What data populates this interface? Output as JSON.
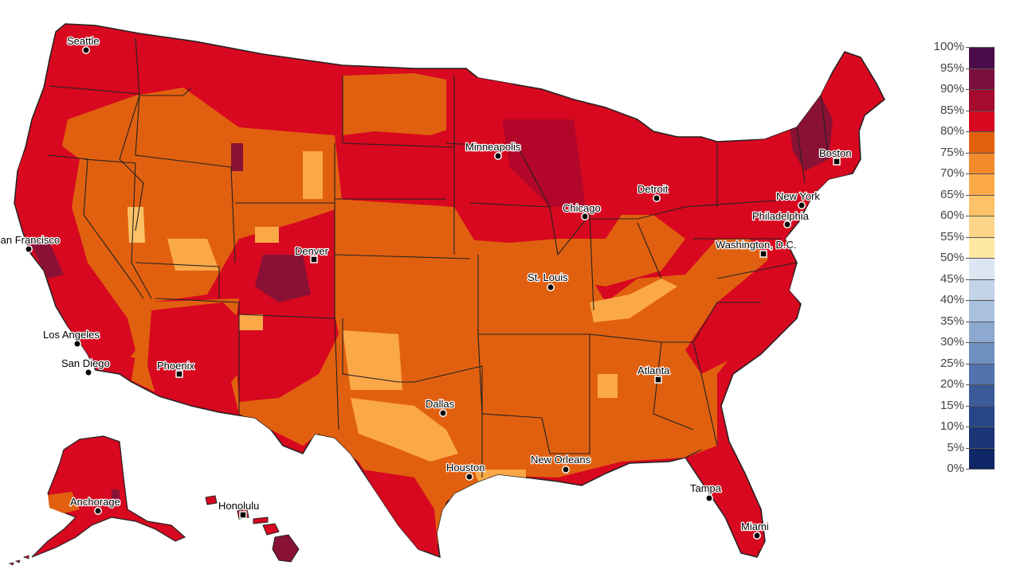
{
  "map": {
    "fill_colors": {
      "ocean": "#ffffff",
      "base_80_85": "#d7081f",
      "high_85_90": "#b2072a",
      "high_90_95": "#8a1136",
      "mid_75_80": "#e1600f",
      "mid_70_75": "#f38a2b",
      "low_65_70": "#fba848",
      "low_60_65": "#fdc168",
      "state_border": "#222222",
      "county_border": "#7a1e18"
    },
    "cities": [
      {
        "id": "seattle",
        "name": "Seattle",
        "marker": "circle"
      },
      {
        "id": "minneapolis",
        "name": "Minneapolis",
        "marker": "circle"
      },
      {
        "id": "boston",
        "name": "Boston",
        "marker": "square"
      },
      {
        "id": "detroit",
        "name": "Detroit",
        "marker": "circle"
      },
      {
        "id": "chicago",
        "name": "Chicago",
        "marker": "circle"
      },
      {
        "id": "new-york",
        "name": "New York",
        "marker": "circle"
      },
      {
        "id": "philadelphia",
        "name": "Philadelphia",
        "marker": "circle"
      },
      {
        "id": "san-francisco",
        "name": "San Francisco",
        "marker": "circle"
      },
      {
        "id": "denver",
        "name": "Denver",
        "marker": "square"
      },
      {
        "id": "washington-dc",
        "name": "Washington, D.C.",
        "marker": "square"
      },
      {
        "id": "st-louis",
        "name": "St. Louis",
        "marker": "circle"
      },
      {
        "id": "los-angeles",
        "name": "Los Angeles",
        "marker": "circle"
      },
      {
        "id": "san-diego",
        "name": "San Diego",
        "marker": "circle"
      },
      {
        "id": "phoenix",
        "name": "Phoenix",
        "marker": "square"
      },
      {
        "id": "atlanta",
        "name": "Atlanta",
        "marker": "square"
      },
      {
        "id": "dallas",
        "name": "Dallas",
        "marker": "circle"
      },
      {
        "id": "houston",
        "name": "Houston",
        "marker": "circle"
      },
      {
        "id": "new-orleans",
        "name": "New Orleans",
        "marker": "circle"
      },
      {
        "id": "tampa",
        "name": "Tampa",
        "marker": "circle"
      },
      {
        "id": "miami",
        "name": "Miami",
        "marker": "circle"
      },
      {
        "id": "anchorage",
        "name": "Anchorage",
        "marker": "circle"
      },
      {
        "id": "honolulu",
        "name": "Honolulu",
        "marker": "square"
      }
    ]
  },
  "legend": {
    "ticks": [
      "100%",
      "95%",
      "90%",
      "85%",
      "80%",
      "75%",
      "70%",
      "65%",
      "60%",
      "55%",
      "50%",
      "45%",
      "40%",
      "35%",
      "30%",
      "25%",
      "20%",
      "15%",
      "10%",
      "5%",
      "0%"
    ],
    "swatch_colors": [
      "#4a0b48",
      "#7a0e3c",
      "#a40b2e",
      "#d7081f",
      "#e1600f",
      "#f38a2b",
      "#fba848",
      "#fdc168",
      "#fdd487",
      "#fee8a2",
      "#dce6f2",
      "#c3d3e8",
      "#a9c0de",
      "#8da9d0",
      "#6f8fc0",
      "#5273ad",
      "#3a5a98",
      "#284587",
      "#1b3577",
      "#0f2766"
    ]
  }
}
